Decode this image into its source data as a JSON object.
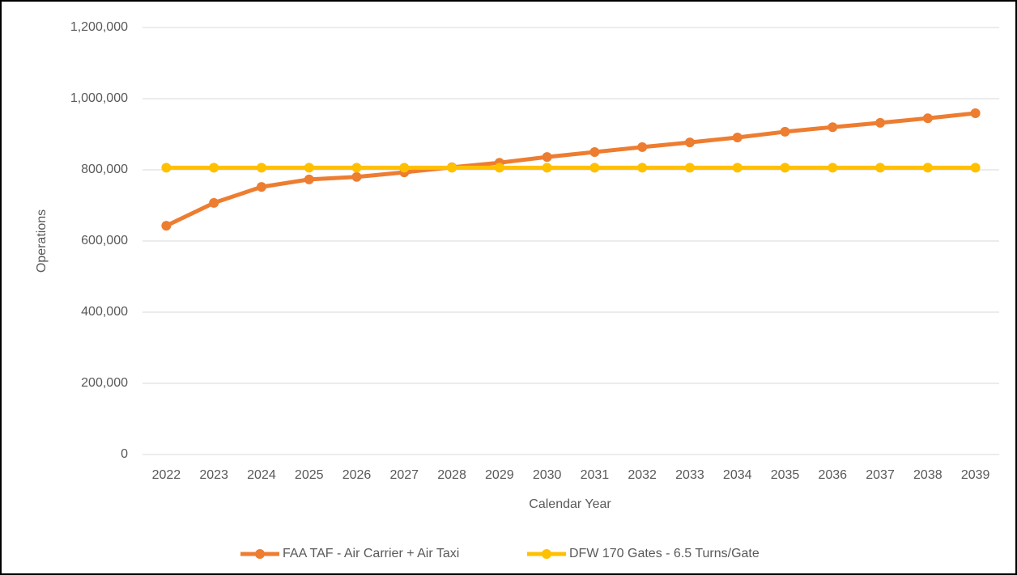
{
  "chart_data": {
    "type": "line",
    "x_label": "Calendar Year",
    "y_label": "Operations",
    "categories": [
      "2022",
      "2023",
      "2024",
      "2025",
      "2026",
      "2027",
      "2028",
      "2029",
      "2030",
      "2031",
      "2032",
      "2033",
      "2034",
      "2035",
      "2036",
      "2037",
      "2038",
      "2039"
    ],
    "series": [
      {
        "name": "FAA TAF - Air Carrier + Air Taxi",
        "color": "#ed7d31",
        "values": [
          643000,
          707000,
          752000,
          773000,
          780000,
          793000,
          807000,
          820000,
          836000,
          850000,
          864000,
          877000,
          891000,
          907000,
          920000,
          932000,
          945000,
          959000
        ]
      },
      {
        "name": "DFW 170 Gates - 6.5 Turns/Gate",
        "color": "#ffc000",
        "values": [
          806000,
          806000,
          806000,
          806000,
          806000,
          806000,
          806000,
          806000,
          806000,
          806000,
          806000,
          806000,
          806000,
          806000,
          806000,
          806000,
          806000,
          806000
        ]
      }
    ],
    "ylim": [
      0,
      1200000
    ],
    "yticks": [
      0,
      {
        "value": 200000,
        "label": "200,000"
      },
      {
        "value": 400000,
        "label": "400,000"
      },
      {
        "value": 600000,
        "label": "600,000"
      },
      {
        "value": 800000,
        "label": "800,000"
      },
      {
        "value": 1000000,
        "label": "1,000,000"
      },
      {
        "value": 1200000,
        "label": "1,200,000"
      }
    ],
    "grid": true,
    "legend": "bottom"
  }
}
